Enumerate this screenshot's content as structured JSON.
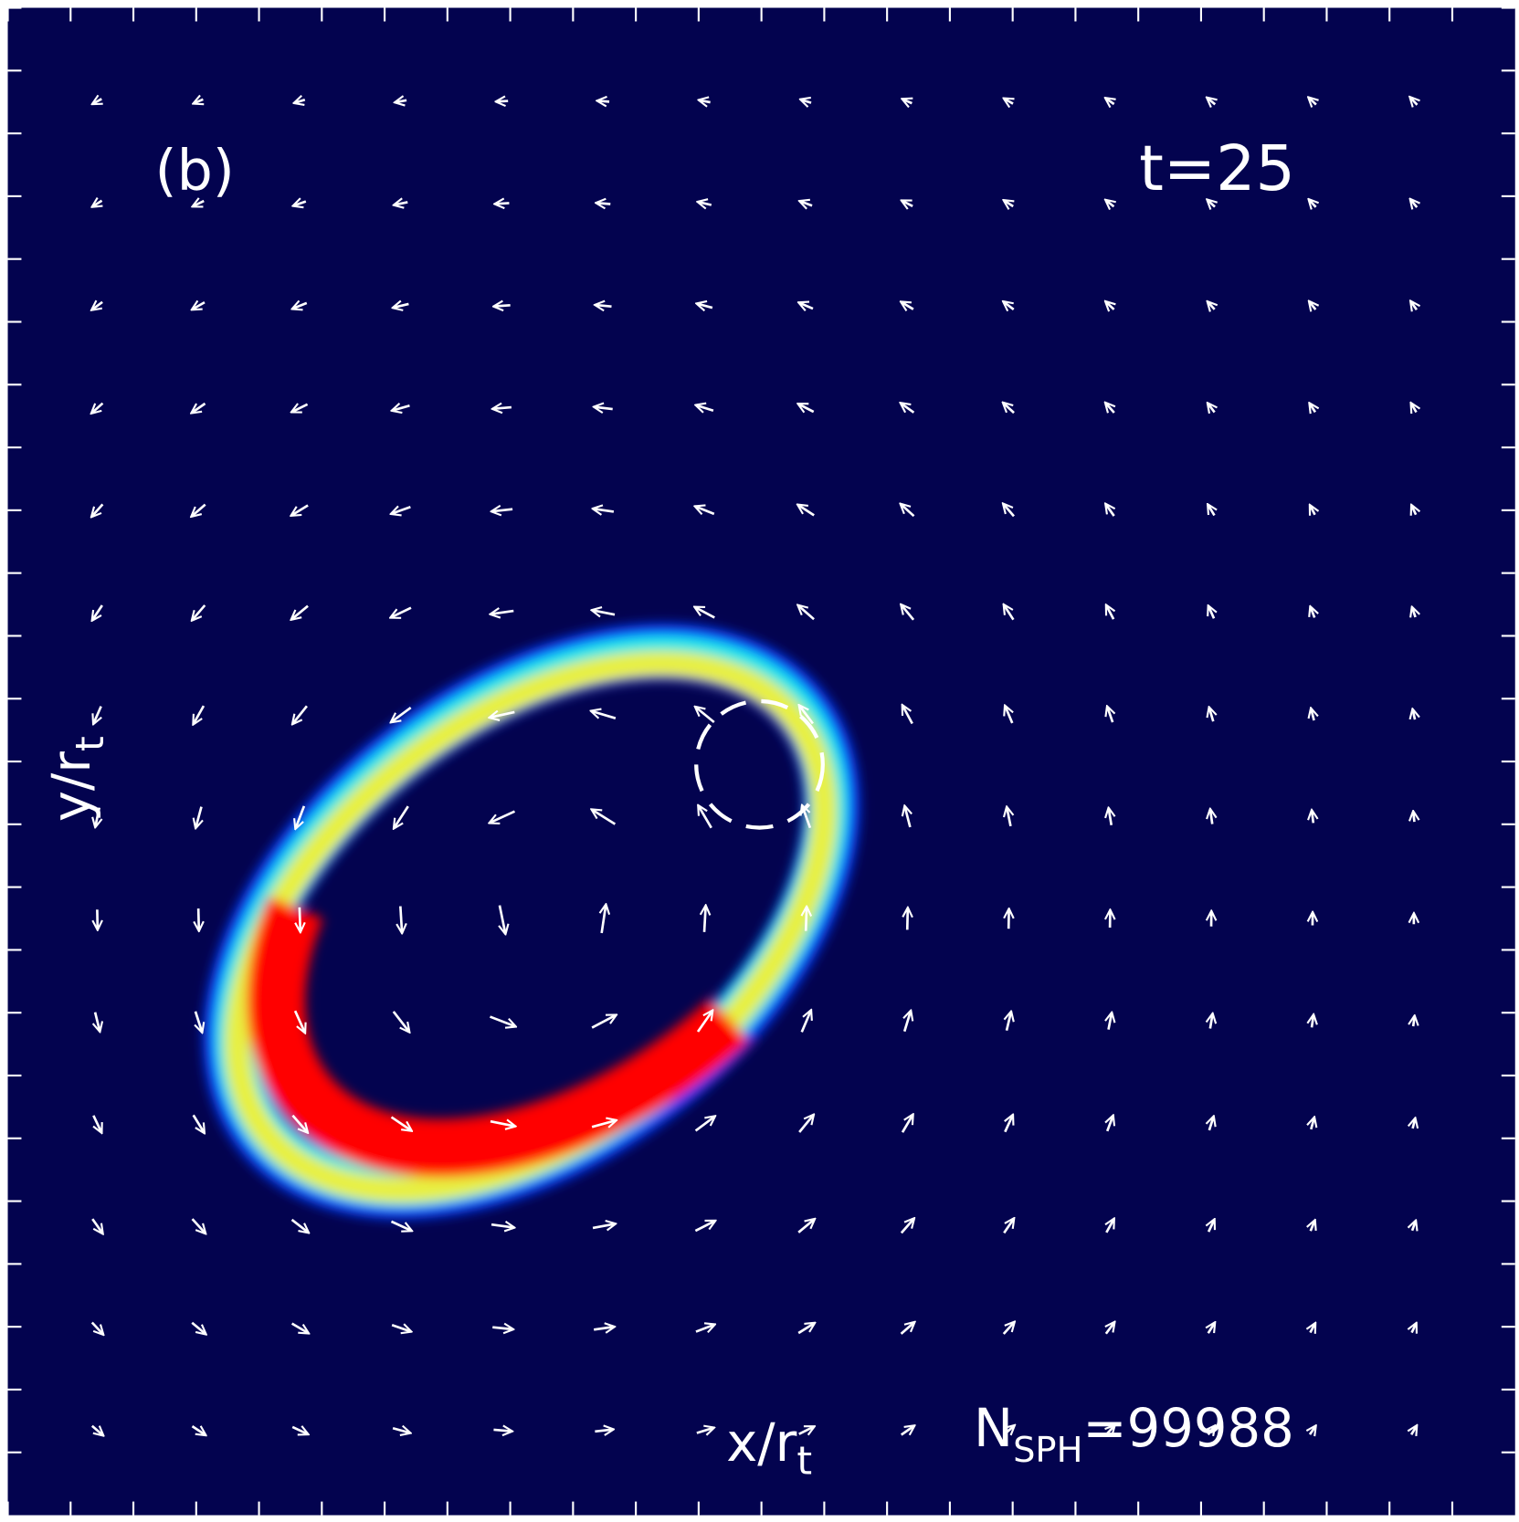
{
  "panel_label": "(b)",
  "time_label": "t=25",
  "y_axis": {
    "label": "y/r",
    "subscript": "t"
  },
  "x_axis": {
    "label": "x/r",
    "subscript": "t"
  },
  "particle_count": {
    "symbol": "N",
    "subscript": "SPH",
    "text": "=99988"
  }
}
